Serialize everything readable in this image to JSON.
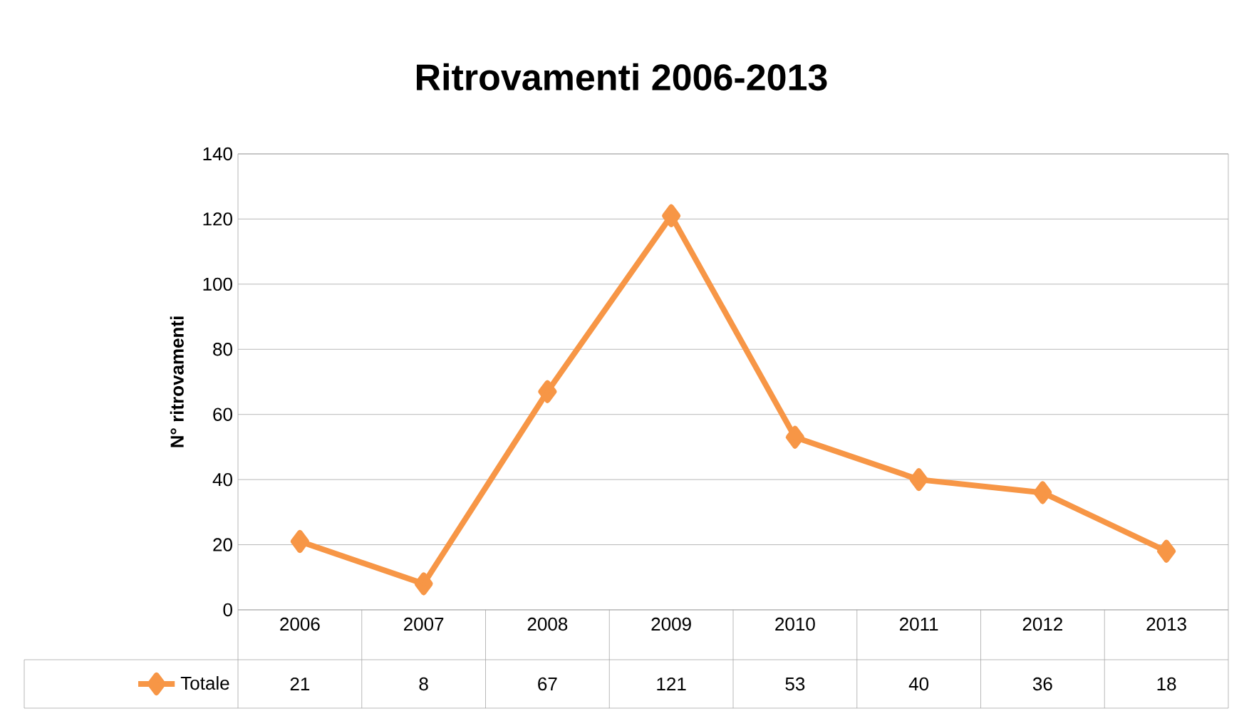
{
  "chart_data": {
    "type": "line",
    "title": "Ritrovamenti 2006-2013",
    "ylabel": "N° ritrovamenti",
    "categories": [
      "2006",
      "2007",
      "2008",
      "2009",
      "2010",
      "2011",
      "2012",
      "2013"
    ],
    "series": [
      {
        "name": "Totale",
        "color": "#f79646",
        "values": [
          21,
          8,
          67,
          121,
          53,
          40,
          36,
          18
        ]
      }
    ],
    "ylim": [
      0,
      140
    ],
    "yticks": [
      0,
      20,
      40,
      60,
      80,
      100,
      120,
      140
    ],
    "grid": "y",
    "legend": "bottom",
    "marker": "diamond",
    "line_style": "solid",
    "data_labels": true
  }
}
